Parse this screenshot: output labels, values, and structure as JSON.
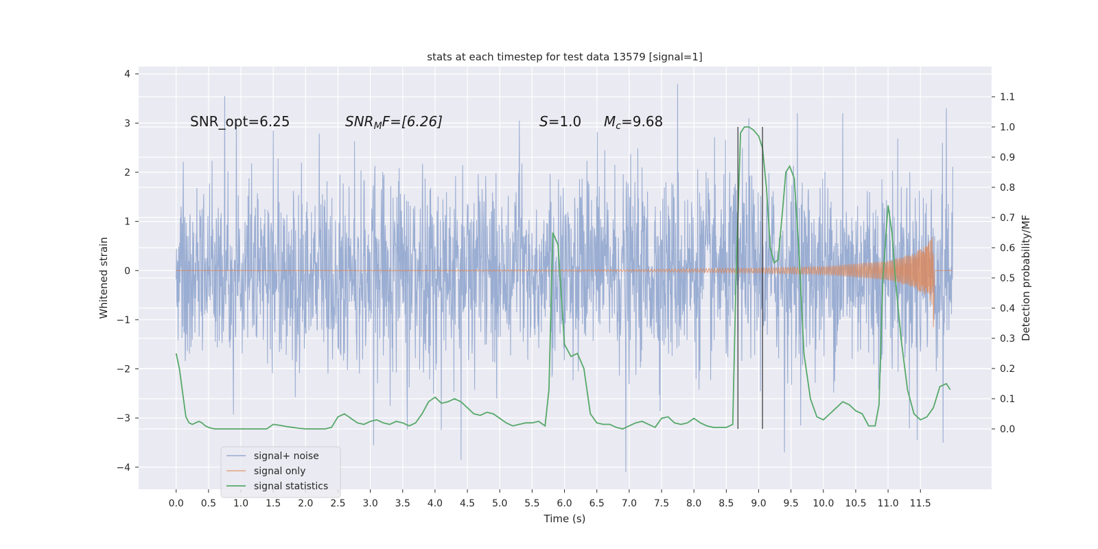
{
  "chart_data": {
    "type": "line",
    "title": "stats at each timestep for test data 13579 [signal=1]",
    "xlabel": "Time (s)",
    "ylabel": "Whitened strain",
    "ylabel_right": "Detection probability/MF",
    "xlim": [
      -0.58,
      12.6
    ],
    "ylim": [
      -4.45,
      4.15
    ],
    "ylim_right": [
      -0.2,
      1.2
    ],
    "x_ticks": [
      "0.0",
      "0.5",
      "1.0",
      "1.5",
      "2.0",
      "2.5",
      "3.0",
      "3.5",
      "4.0",
      "4.5",
      "5.0",
      "5.5",
      "6.0",
      "6.5",
      "7.0",
      "7.5",
      "8.0",
      "8.5",
      "9.0",
      "9.5",
      "10.0",
      "10.5",
      "11.0",
      "11.5"
    ],
    "y_ticks": [
      "4",
      "3",
      "2",
      "1",
      "0",
      "−1",
      "−2",
      "−3",
      "−4"
    ],
    "y_ticks_right": [
      "1.1",
      "1.0",
      "0.9",
      "0.8",
      "0.7",
      "0.6",
      "0.5",
      "0.4",
      "0.3",
      "0.2",
      "0.1",
      "0.0"
    ],
    "annotations": {
      "snr_opt": "SNR_opt=6.25",
      "snr_mf_name": "SNR",
      "snr_mf_sub": "M",
      "snr_mf_rest": "F=[6.26]",
      "s_name": "S",
      "s_rest": "=1.0",
      "mc_name": "M",
      "mc_sub": "c",
      "mc_rest": "=9.68"
    },
    "vertical_lines_x": [
      8.68,
      9.06
    ],
    "series": [
      {
        "name": "signal+ noise",
        "color": "#96aad0",
        "x_range": [
          0.0,
          12.0
        ],
        "typical_band": [
          -1.8,
          1.8
        ],
        "extremes": [
          -4.1,
          3.8
        ],
        "peaks": [
          [
            0.75,
            3.55
          ],
          [
            7.75,
            3.8
          ],
          [
            1.5,
            2.85
          ],
          [
            5.3,
            3.05
          ],
          [
            9.4,
            -3.7
          ],
          [
            6.95,
            -4.1
          ],
          [
            4.4,
            -3.85
          ],
          [
            3.05,
            -3.55
          ],
          [
            11.45,
            -3.45
          ],
          [
            11.9,
            3.3
          ],
          [
            11.85,
            -3.5
          ],
          [
            10.3,
            3.2
          ],
          [
            9.6,
            3.2
          ],
          [
            8.85,
            3.1
          ]
        ]
      },
      {
        "name": "signal only",
        "color": "#dd8452",
        "description_points": [
          [
            0.0,
            0.0
          ],
          [
            7.0,
            0.02
          ],
          [
            9.0,
            0.05
          ],
          [
            10.0,
            0.08
          ],
          [
            11.0,
            0.2
          ],
          [
            11.4,
            0.35
          ],
          [
            11.62,
            0.55
          ],
          [
            11.68,
            0.75
          ],
          [
            11.7,
            -1.15
          ],
          [
            11.72,
            0.0
          ],
          [
            12.0,
            0.0
          ]
        ]
      },
      {
        "name": "signal statistics",
        "color": "#55a868",
        "axis": "right",
        "x": [
          0.0,
          0.05,
          0.1,
          0.15,
          0.2,
          0.25,
          0.3,
          0.35,
          0.4,
          0.45,
          0.5,
          0.55,
          0.6,
          0.7,
          0.8,
          0.9,
          1.0,
          1.1,
          1.2,
          1.3,
          1.4,
          1.5,
          1.6,
          1.7,
          1.8,
          1.9,
          2.0,
          2.1,
          2.2,
          2.3,
          2.4,
          2.5,
          2.6,
          2.7,
          2.8,
          2.9,
          3.0,
          3.1,
          3.2,
          3.3,
          3.4,
          3.5,
          3.6,
          3.7,
          3.8,
          3.9,
          4.0,
          4.1,
          4.2,
          4.3,
          4.4,
          4.5,
          4.6,
          4.7,
          4.8,
          4.9,
          5.0,
          5.1,
          5.2,
          5.3,
          5.4,
          5.5,
          5.6,
          5.7,
          5.76,
          5.82,
          5.9,
          6.0,
          6.1,
          6.2,
          6.3,
          6.4,
          6.5,
          6.6,
          6.7,
          6.8,
          6.9,
          7.0,
          7.1,
          7.2,
          7.3,
          7.4,
          7.5,
          7.6,
          7.7,
          7.8,
          7.9,
          8.0,
          8.1,
          8.2,
          8.3,
          8.4,
          8.5,
          8.6,
          8.65,
          8.72,
          8.78,
          8.85,
          8.92,
          9.0,
          9.06,
          9.12,
          9.18,
          9.24,
          9.3,
          9.36,
          9.42,
          9.48,
          9.55,
          9.62,
          9.7,
          9.8,
          9.9,
          10.0,
          10.1,
          10.2,
          10.3,
          10.4,
          10.5,
          10.6,
          10.7,
          10.8,
          10.86,
          10.92,
          11.0,
          11.06,
          11.12,
          11.2,
          11.3,
          11.4,
          11.5,
          11.6,
          11.7,
          11.8,
          11.9,
          11.96
        ],
        "values": [
          0.25,
          0.2,
          0.12,
          0.04,
          0.02,
          0.015,
          0.02,
          0.025,
          0.02,
          0.01,
          0.005,
          0.002,
          0.0,
          0.0,
          0.0,
          0.0,
          0.0,
          0.0,
          0.0,
          0.0,
          0.0,
          0.015,
          0.012,
          0.008,
          0.005,
          0.002,
          0.0,
          0.0,
          0.0,
          0.0,
          0.005,
          0.04,
          0.05,
          0.035,
          0.02,
          0.015,
          0.025,
          0.03,
          0.02,
          0.015,
          0.025,
          0.02,
          0.01,
          0.02,
          0.05,
          0.09,
          0.105,
          0.085,
          0.09,
          0.1,
          0.09,
          0.07,
          0.05,
          0.045,
          0.055,
          0.05,
          0.035,
          0.02,
          0.01,
          0.015,
          0.02,
          0.02,
          0.025,
          0.01,
          0.13,
          0.65,
          0.61,
          0.28,
          0.24,
          0.25,
          0.2,
          0.05,
          0.02,
          0.015,
          0.015,
          0.005,
          0.0,
          0.01,
          0.02,
          0.025,
          0.015,
          0.005,
          0.035,
          0.04,
          0.02,
          0.015,
          0.02,
          0.035,
          0.02,
          0.01,
          0.005,
          0.005,
          0.005,
          0.015,
          0.5,
          0.98,
          1.0,
          1.0,
          0.99,
          0.97,
          0.93,
          0.8,
          0.6,
          0.55,
          0.56,
          0.7,
          0.85,
          0.87,
          0.83,
          0.6,
          0.25,
          0.1,
          0.04,
          0.03,
          0.05,
          0.07,
          0.09,
          0.08,
          0.06,
          0.05,
          0.01,
          0.01,
          0.08,
          0.5,
          0.74,
          0.65,
          0.48,
          0.3,
          0.13,
          0.05,
          0.03,
          0.04,
          0.07,
          0.14,
          0.15,
          0.13
        ]
      }
    ],
    "legend": {
      "placement": "lower-left",
      "entries": [
        "signal+ noise",
        "signal only",
        "signal statistics"
      ]
    }
  }
}
